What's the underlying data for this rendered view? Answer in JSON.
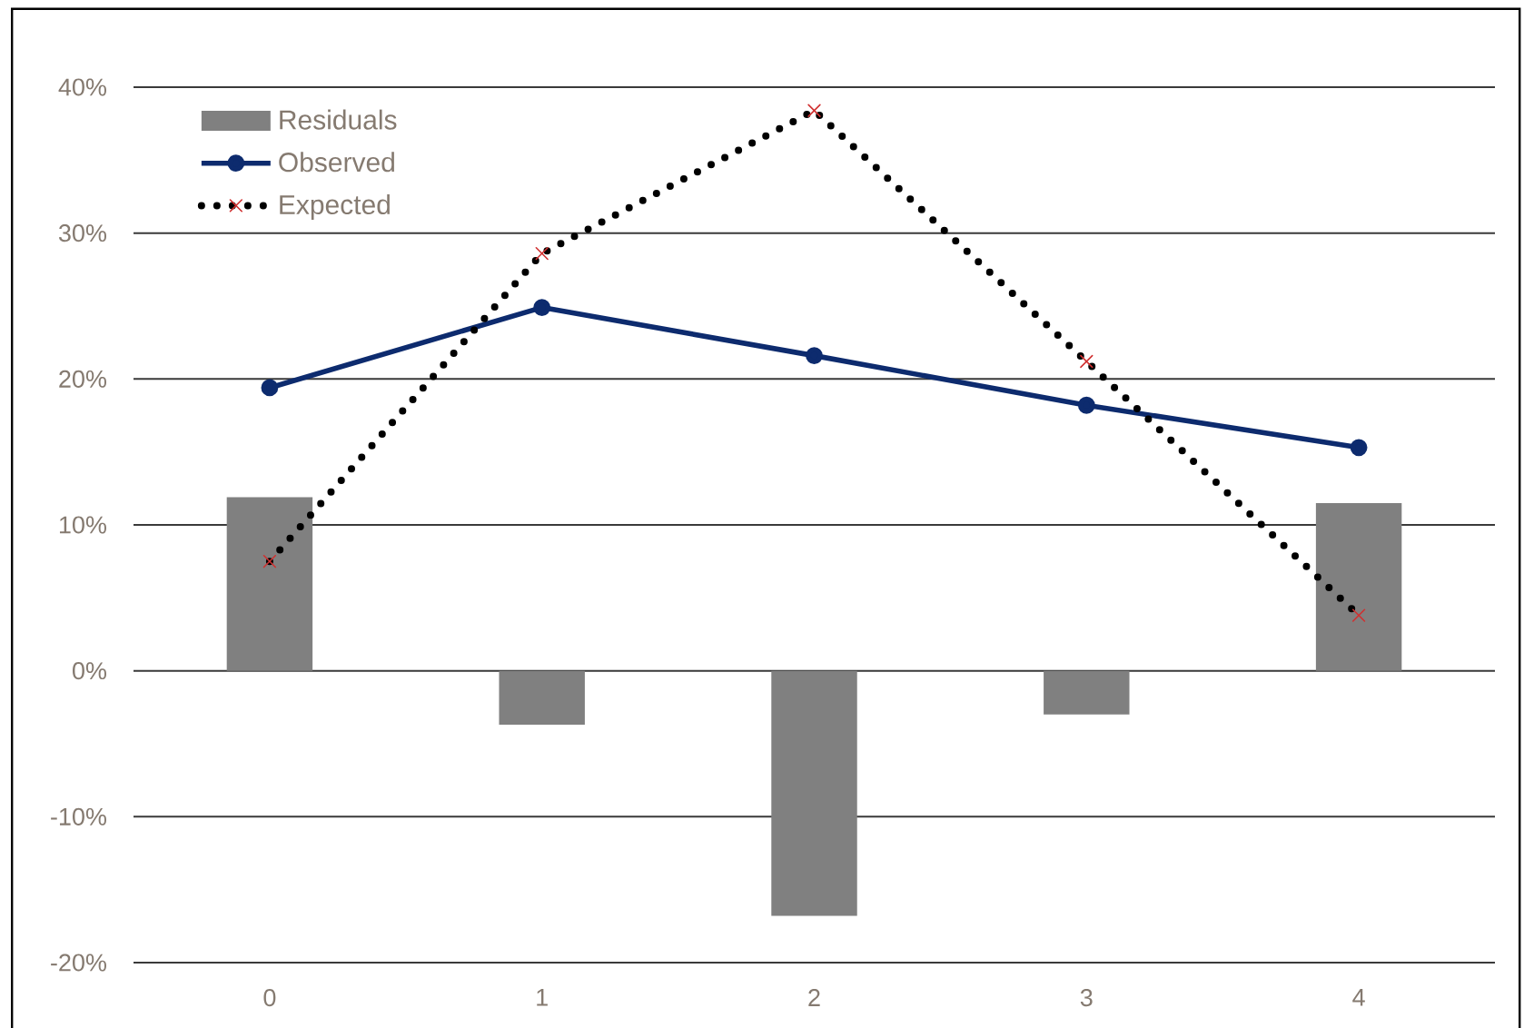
{
  "chart_data": {
    "type": "bar",
    "categories": [
      "0",
      "1",
      "2",
      "3",
      "4"
    ],
    "ylim": [
      -20,
      40
    ],
    "yticks": [
      {
        "value": -20,
        "label": "-20%"
      },
      {
        "value": -10,
        "label": "-10%"
      },
      {
        "value": 0,
        "label": "0%"
      },
      {
        "value": 10,
        "label": "10%"
      },
      {
        "value": 20,
        "label": "20%"
      },
      {
        "value": 30,
        "label": "30%"
      },
      {
        "value": 40,
        "label": "40%"
      }
    ],
    "grid": "y",
    "legend": "top left",
    "series": [
      {
        "name": "Residuals",
        "color": "#808080",
        "values": [
          11.9,
          -3.7,
          -16.8,
          -3.0,
          11.5
        ]
      },
      {
        "name": "Observed",
        "type": "line",
        "color": "#0d2b6e",
        "marker": "circle",
        "line_style": "solid",
        "values": [
          19.4,
          24.9,
          21.6,
          18.2,
          15.3
        ]
      },
      {
        "name": "Expected",
        "type": "line",
        "color": "#000000",
        "marker": "cross",
        "line_style": "dotted",
        "values": [
          7.5,
          28.6,
          38.4,
          21.2,
          3.8
        ]
      }
    ]
  }
}
